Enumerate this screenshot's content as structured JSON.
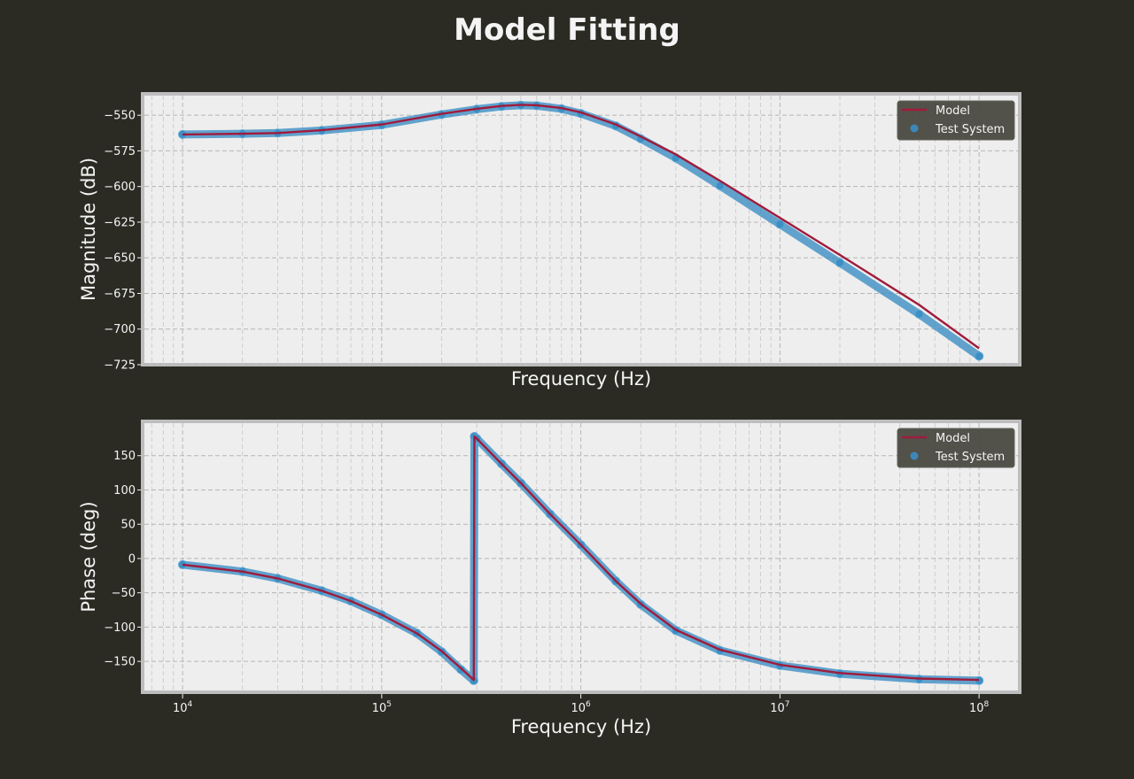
{
  "figure": {
    "title": "Model Fitting",
    "background": "#2b2b24",
    "axes_background": "#eeeeee",
    "model_color": "#a01b3c",
    "test_color": "#3a8dc4"
  },
  "chart_data": [
    {
      "type": "line",
      "title": "",
      "xlabel": "Frequency (Hz)",
      "ylabel": "Magnitude (dB)",
      "xscale": "log",
      "xlim": [
        6300,
        160000000
      ],
      "ylim": [
        -725,
        -535
      ],
      "yticks": [
        -550,
        -575,
        -600,
        -625,
        -650,
        -675,
        -700,
        -725
      ],
      "ytick_labels": [
        "−550",
        "−575",
        "−600",
        "−625",
        "−650",
        "−675",
        "−700",
        "−725"
      ],
      "show_xtick_labels": false,
      "grid": true,
      "legend": {
        "position": "top-right",
        "entries": [
          "Model",
          "Test System"
        ]
      },
      "series": [
        {
          "name": "Model",
          "kind": "line",
          "x": [
            10000,
            20000,
            30000,
            50000,
            100000,
            200000,
            300000,
            400000,
            500000,
            600000,
            800000,
            1000000,
            1500000,
            2000000,
            3000000,
            5000000,
            10000000,
            20000000,
            50000000,
            100000000
          ],
          "y": [
            -563.5,
            -563.0,
            -562.5,
            -560.5,
            -556.5,
            -549.0,
            -545.5,
            -543.5,
            -542.7,
            -543.0,
            -545.0,
            -548.0,
            -556.5,
            -565.0,
            -577.5,
            -596.0,
            -622.0,
            -648.0,
            -683.0,
            -713.5
          ]
        },
        {
          "name": "Test System",
          "kind": "scatter",
          "x": [
            10000,
            20000,
            30000,
            50000,
            100000,
            200000,
            300000,
            400000,
            500000,
            600000,
            800000,
            1000000,
            1500000,
            2000000,
            3000000,
            5000000,
            10000000,
            20000000,
            50000000,
            100000000
          ],
          "y": [
            -563.5,
            -563.0,
            -562.5,
            -560.7,
            -556.8,
            -549.5,
            -545.8,
            -543.8,
            -543.0,
            -543.3,
            -545.5,
            -548.8,
            -557.5,
            -566.5,
            -580.0,
            -599.5,
            -626.5,
            -653.5,
            -689.5,
            -719.0
          ]
        }
      ]
    },
    {
      "type": "line",
      "title": "",
      "xlabel": "Frequency (Hz)",
      "ylabel": "Phase (deg)",
      "xscale": "log",
      "xlim": [
        6300,
        160000000
      ],
      "ylim": [
        -195,
        200
      ],
      "yticks": [
        150,
        100,
        50,
        0,
        -50,
        -100,
        -150
      ],
      "ytick_labels": [
        "150",
        "100",
        "50",
        "0",
        "−50",
        "−100",
        "−150"
      ],
      "xticks": [
        10000,
        100000,
        1000000,
        10000000,
        100000000
      ],
      "xtick_labels": [
        [
          "10",
          "4"
        ],
        [
          "10",
          "5"
        ],
        [
          "10",
          "6"
        ],
        [
          "10",
          "7"
        ],
        [
          "10",
          "8"
        ]
      ],
      "show_xtick_labels": true,
      "grid": true,
      "legend": {
        "position": "top-right",
        "entries": [
          "Model",
          "Test System"
        ]
      },
      "series": [
        {
          "name": "Model",
          "kind": "line",
          "x": [
            10000,
            20000,
            30000,
            50000,
            70000,
            100000,
            150000,
            200000,
            250000,
            290000,
            292000,
            300000,
            400000,
            500000,
            700000,
            1000000,
            1500000,
            2000000,
            3000000,
            5000000,
            10000000,
            20000000,
            50000000,
            100000000
          ],
          "y": [
            -9,
            -19,
            -29,
            -47,
            -62,
            -82,
            -109,
            -135,
            -160,
            -177,
            178,
            175,
            138,
            110,
            65,
            20,
            -33,
            -66,
            -104,
            -133,
            -155,
            -167,
            -175,
            -177
          ]
        },
        {
          "name": "Test System",
          "kind": "scatter",
          "x": [
            10000,
            20000,
            30000,
            50000,
            70000,
            100000,
            150000,
            200000,
            250000,
            290000,
            292000,
            300000,
            400000,
            500000,
            700000,
            1000000,
            1500000,
            2000000,
            3000000,
            5000000,
            10000000,
            20000000,
            50000000,
            100000000
          ],
          "y": [
            -9,
            -19,
            -29,
            -47,
            -62,
            -82,
            -109,
            -136,
            -162,
            -178,
            178,
            175,
            138,
            110,
            65,
            20,
            -33,
            -67,
            -105,
            -134,
            -156,
            -168,
            -176,
            -178
          ]
        }
      ]
    }
  ]
}
